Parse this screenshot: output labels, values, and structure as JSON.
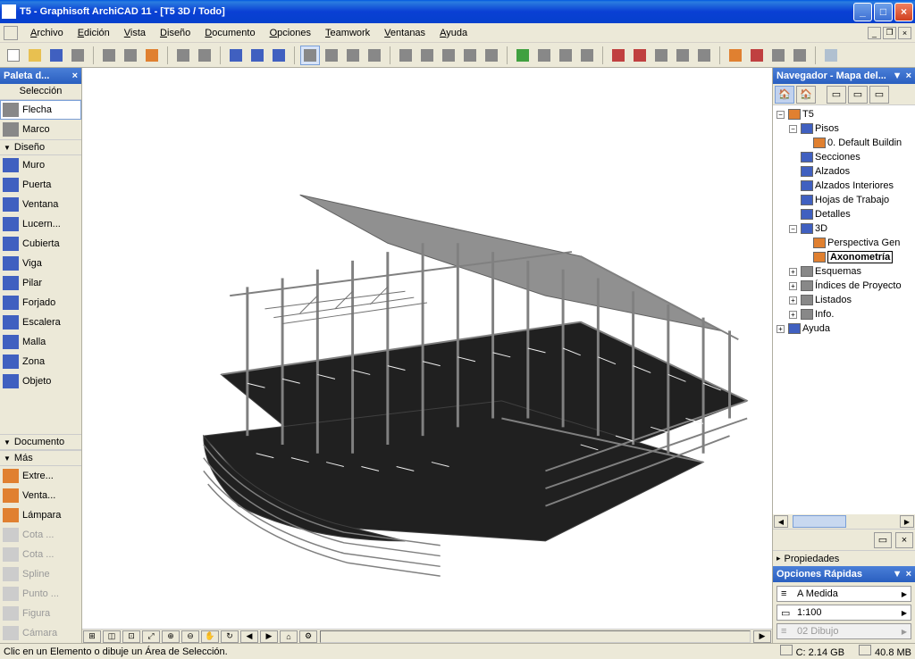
{
  "window": {
    "title": "T5 - Graphisoft ArchiCAD 11 - [T5 3D / Todo]"
  },
  "menus": [
    "Archivo",
    "Edición",
    "Vista",
    "Diseño",
    "Documento",
    "Opciones",
    "Teamwork",
    "Ventanas",
    "Ayuda"
  ],
  "toolbar": {
    "groups": [
      [
        "new",
        "open",
        "save",
        "print"
      ],
      [
        "cut",
        "copy",
        "paste"
      ],
      [
        "undo",
        "redo"
      ],
      [
        "find",
        "marker",
        "eyedrop"
      ],
      [
        "trim1",
        "trim2",
        "trim3",
        "trim4"
      ],
      [
        "align",
        "distr",
        "distr2",
        "distr3",
        "distr4"
      ],
      [
        "roof",
        "beam",
        "beam2",
        "column"
      ],
      [
        "dim",
        "dim2",
        "dim3",
        "dim4",
        "dim5"
      ],
      [
        "meas",
        "meas2",
        "meas3",
        "meas4"
      ],
      [
        "view3d"
      ]
    ]
  },
  "palette": {
    "title": "Paleta d...",
    "sub": "Selección",
    "selection": [
      {
        "label": "Flecha",
        "selected": true
      },
      {
        "label": "Marco"
      }
    ],
    "design_header": "Diseño",
    "design": [
      {
        "label": "Muro"
      },
      {
        "label": "Puerta"
      },
      {
        "label": "Ventana"
      },
      {
        "label": "Lucern..."
      },
      {
        "label": "Cubierta"
      },
      {
        "label": "Viga"
      },
      {
        "label": "Pilar"
      },
      {
        "label": "Forjado"
      },
      {
        "label": "Escalera"
      },
      {
        "label": "Malla"
      },
      {
        "label": "Zona"
      },
      {
        "label": "Objeto"
      }
    ],
    "doc_header": "Documento",
    "more_header": "Más",
    "more": [
      {
        "label": "Extre..."
      },
      {
        "label": "Venta..."
      },
      {
        "label": "Lámpara"
      },
      {
        "label": "Cota ...",
        "dim": true
      },
      {
        "label": "Cota ...",
        "dim": true
      },
      {
        "label": "Spline",
        "dim": true
      },
      {
        "label": "Punto ...",
        "dim": true
      },
      {
        "label": "Figura",
        "dim": true
      },
      {
        "label": "Cámara",
        "dim": true
      }
    ]
  },
  "navigator": {
    "title": "Navegador - Mapa del...",
    "tree": [
      {
        "l": 0,
        "t": "-",
        "ic": "orange",
        "label": "T5"
      },
      {
        "l": 1,
        "t": "-",
        "ic": "blue",
        "label": "Pisos"
      },
      {
        "l": 2,
        "t": "",
        "ic": "orange",
        "label": "0. Default Buildin"
      },
      {
        "l": 1,
        "t": "",
        "ic": "blue",
        "label": "Secciones"
      },
      {
        "l": 1,
        "t": "",
        "ic": "blue",
        "label": "Alzados"
      },
      {
        "l": 1,
        "t": "",
        "ic": "blue",
        "label": "Alzados Interiores"
      },
      {
        "l": 1,
        "t": "",
        "ic": "blue",
        "label": "Hojas de Trabajo"
      },
      {
        "l": 1,
        "t": "",
        "ic": "blue",
        "label": "Detalles"
      },
      {
        "l": 1,
        "t": "-",
        "ic": "blue",
        "label": "3D"
      },
      {
        "l": 2,
        "t": "",
        "ic": "orange",
        "label": "Perspectiva Gen"
      },
      {
        "l": 2,
        "t": "",
        "ic": "orange",
        "label": "Axonometría",
        "sel": true
      },
      {
        "l": 1,
        "t": "+",
        "ic": "gray",
        "label": "Esquemas"
      },
      {
        "l": 1,
        "t": "+",
        "ic": "gray",
        "label": "Índices de Proyecto"
      },
      {
        "l": 1,
        "t": "+",
        "ic": "gray",
        "label": "Listados"
      },
      {
        "l": 1,
        "t": "+",
        "ic": "gray",
        "label": "Info."
      },
      {
        "l": 0,
        "t": "+",
        "ic": "blue",
        "label": "Ayuda"
      }
    ],
    "properties": "Propiedades"
  },
  "quick": {
    "title": "Opciones Rápidas",
    "fields": [
      {
        "icon": "≡",
        "value": "A Medida"
      },
      {
        "icon": "▭",
        "value": "1:100"
      },
      {
        "icon": "≡",
        "value": "02 Dibujo",
        "disabled": true
      }
    ]
  },
  "status": {
    "hint": "Clic en un Elemento o dibuje un Área de Selección.",
    "disk_label": "C:",
    "disk_value": "2.14 GB",
    "mem_value": "40.8 MB"
  },
  "viewport": {
    "background": "#ffffff",
    "model_colors": {
      "structure": "#808080",
      "dark_structure": "#606060",
      "floor": "#202020",
      "roof": "#909090"
    }
  }
}
